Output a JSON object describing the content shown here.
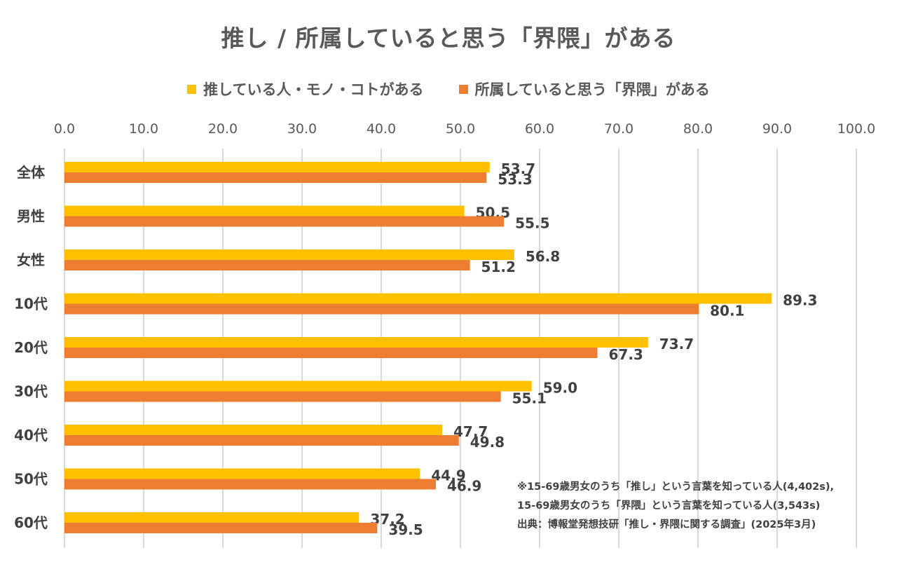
{
  "title": "推し / 所属していると思う「界隈」がある",
  "legend": {
    "items": [
      {
        "label": "推している人・モノ・コトがある",
        "color": "#FFC000"
      },
      {
        "label": "所属していると思う「界隈」がある",
        "color": "#ED7D31"
      }
    ]
  },
  "notes": {
    "line1": "※15-69歳男女のうち「推し」という言葉を知っている人(4,402s),",
    "line2": "15-69歳男女のうち「界隈」という言葉を知っている人(3,543s)",
    "source": "出典：博報堂発想技研「推し・界隈に関する調査」(2025年3月)"
  },
  "chart_data": {
    "type": "bar",
    "orientation": "horizontal",
    "title": "推し / 所属していると思う「界隈」がある",
    "categories": [
      "全体",
      "男性",
      "女性",
      "10代",
      "20代",
      "30代",
      "40代",
      "50代",
      "60代"
    ],
    "series": [
      {
        "name": "推している人・モノ・コトがある",
        "color": "#FFC000",
        "values": [
          53.7,
          50.5,
          56.8,
          89.3,
          73.7,
          59.0,
          47.7,
          44.9,
          37.2
        ],
        "labels": [
          "53.7",
          "50.5",
          "56.8",
          "89.3",
          "73.7",
          "59.0",
          "47.7",
          "44.9",
          "37.2"
        ]
      },
      {
        "name": "所属していると思う「界隈」がある",
        "color": "#ED7D31",
        "values": [
          53.3,
          55.5,
          51.2,
          80.1,
          67.3,
          55.1,
          49.8,
          46.9,
          39.5
        ],
        "labels": [
          "53.3",
          "55.5",
          "51.2",
          "80.1",
          "67.3",
          "55.1",
          "49.8",
          "46.9",
          "39.5"
        ]
      }
    ],
    "xlim": [
      0,
      100
    ],
    "ticks": [
      "0.0",
      "10.0",
      "20.0",
      "30.0",
      "40.0",
      "50.0",
      "60.0",
      "70.0",
      "80.0",
      "90.0",
      "100.0"
    ],
    "tick_values": [
      0,
      10,
      20,
      30,
      40,
      50,
      60,
      70,
      80,
      90,
      100
    ],
    "axis_position": "top",
    "grid": true,
    "gridline_color": "#D9D9D9",
    "legend_position": "top"
  }
}
